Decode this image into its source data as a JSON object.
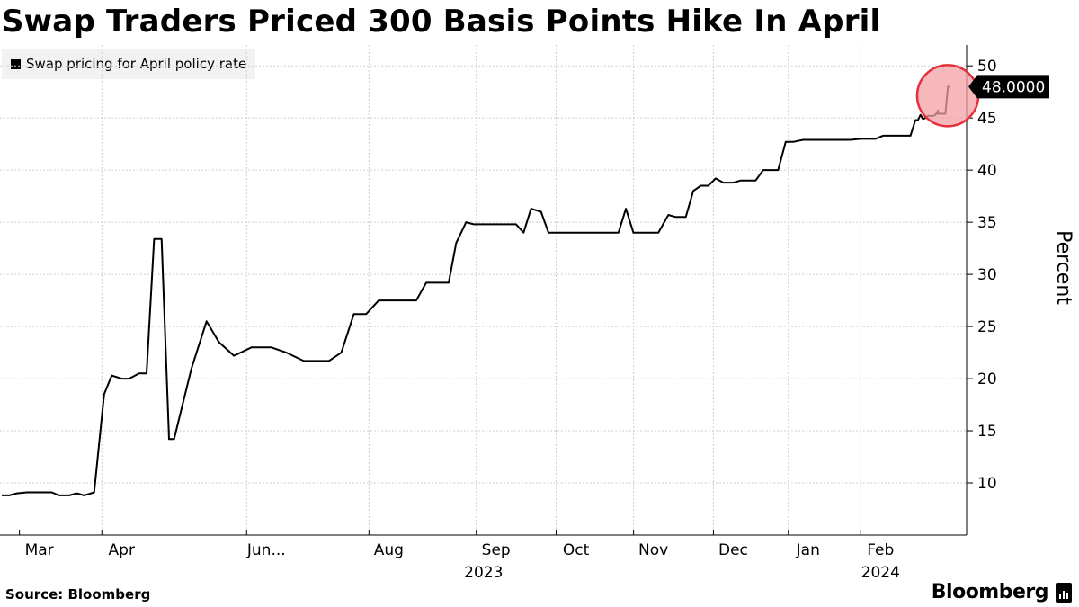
{
  "header": {
    "title": "Swap Traders Priced 300 Basis Points Hike In April"
  },
  "legend": {
    "label": "Swap pricing for April policy rate"
  },
  "footer": {
    "source": "Source: Bloomberg",
    "brand": "Bloomberg"
  },
  "chart_data": {
    "type": "line",
    "title": "Swap Traders Priced 300 Basis Points Hike In April",
    "ylabel": "Percent",
    "xlabel": "",
    "ylim": [
      5,
      52
    ],
    "xlim": [
      "2023-02-14",
      "2024-02-29"
    ],
    "y_ticks": [
      10,
      15,
      20,
      25,
      30,
      35,
      40,
      45,
      50
    ],
    "x_ticks": [
      {
        "label": "Mar",
        "date": "2023-03-01"
      },
      {
        "label": "Apr",
        "date": "2023-04-03"
      },
      {
        "label": "Jun...",
        "date": "2023-05-31"
      },
      {
        "label": "Aug",
        "date": "2023-07-19"
      },
      {
        "label": "Sep",
        "date": "2023-08-31"
      },
      {
        "label": "Oct",
        "date": "2023-10-02"
      },
      {
        "label": "Nov",
        "date": "2023-11-02"
      },
      {
        "label": "Dec",
        "date": "2023-12-04"
      },
      {
        "label": "Jan",
        "date": "2024-01-03"
      },
      {
        "label": "Feb",
        "date": "2024-02-01"
      }
    ],
    "year_labels": [
      {
        "label": "2023",
        "date": "2023-10-01"
      },
      {
        "label": "2024",
        "date": "2024-02-01"
      }
    ],
    "grid": true,
    "legend_position": "top-left",
    "last_value_label": "48.0000",
    "highlight_last_point": true,
    "series": [
      {
        "name": "Swap pricing for April policy rate",
        "color": "#000000",
        "points": [
          [
            "2023-02-14",
            8.8
          ],
          [
            "2023-02-17",
            8.8
          ],
          [
            "2023-02-20",
            9.0
          ],
          [
            "2023-02-24",
            9.1
          ],
          [
            "2023-03-03",
            9.1
          ],
          [
            "2023-03-06",
            9.1
          ],
          [
            "2023-03-09",
            8.8
          ],
          [
            "2023-03-13",
            8.8
          ],
          [
            "2023-03-16",
            9.0
          ],
          [
            "2023-03-19",
            8.8
          ],
          [
            "2023-03-23",
            9.1
          ],
          [
            "2023-03-27",
            18.5
          ],
          [
            "2023-03-30",
            20.3
          ],
          [
            "2023-04-03",
            20.0
          ],
          [
            "2023-04-06",
            20.0
          ],
          [
            "2023-04-10",
            20.5
          ],
          [
            "2023-04-13",
            20.5
          ],
          [
            "2023-04-16",
            33.4
          ],
          [
            "2023-04-19",
            33.4
          ],
          [
            "2023-04-22",
            14.2
          ],
          [
            "2023-04-24",
            14.2
          ],
          [
            "2023-05-01",
            21.0
          ],
          [
            "2023-05-07",
            25.5
          ],
          [
            "2023-05-12",
            23.5
          ],
          [
            "2023-05-18",
            22.2
          ],
          [
            "2023-05-25",
            23.0
          ],
          [
            "2023-06-02",
            23.0
          ],
          [
            "2023-06-08",
            22.5
          ],
          [
            "2023-06-15",
            21.7
          ],
          [
            "2023-06-25",
            21.7
          ],
          [
            "2023-06-30",
            22.5
          ],
          [
            "2023-07-05",
            26.2
          ],
          [
            "2023-07-10",
            26.2
          ],
          [
            "2023-07-15",
            27.5
          ],
          [
            "2023-07-30",
            27.5
          ],
          [
            "2023-08-03",
            29.2
          ],
          [
            "2023-08-12",
            29.2
          ],
          [
            "2023-08-15",
            33.0
          ],
          [
            "2023-08-19",
            35.0
          ],
          [
            "2023-08-22",
            34.8
          ],
          [
            "2023-09-08",
            34.8
          ],
          [
            "2023-09-11",
            34.0
          ],
          [
            "2023-09-14",
            36.3
          ],
          [
            "2023-09-18",
            36.0
          ],
          [
            "2023-09-21",
            34.0
          ],
          [
            "2023-09-28",
            34.0
          ],
          [
            "2023-10-05",
            34.0
          ],
          [
            "2023-10-12",
            34.0
          ],
          [
            "2023-10-19",
            34.0
          ],
          [
            "2023-10-22",
            36.3
          ],
          [
            "2023-10-25",
            34.0
          ],
          [
            "2023-10-29",
            34.0
          ],
          [
            "2023-11-04",
            34.0
          ],
          [
            "2023-11-08",
            35.7
          ],
          [
            "2023-11-11",
            35.5
          ],
          [
            "2023-11-15",
            35.5
          ],
          [
            "2023-11-18",
            38.0
          ],
          [
            "2023-11-21",
            38.5
          ],
          [
            "2023-11-24",
            38.5
          ],
          [
            "2023-11-27",
            39.2
          ],
          [
            "2023-11-30",
            38.8
          ],
          [
            "2023-12-04",
            38.8
          ],
          [
            "2023-12-07",
            39.0
          ],
          [
            "2023-12-13",
            39.0
          ],
          [
            "2023-12-16",
            40.0
          ],
          [
            "2023-12-22",
            40.0
          ],
          [
            "2023-12-25",
            42.7
          ],
          [
            "2023-12-28",
            42.7
          ],
          [
            "2024-01-01",
            42.9
          ],
          [
            "2024-01-10",
            42.9
          ],
          [
            "2024-01-20",
            42.9
          ],
          [
            "2024-01-24",
            43.0
          ],
          [
            "2024-01-30",
            43.0
          ],
          [
            "2024-02-02",
            43.3
          ],
          [
            "2024-02-06",
            43.3
          ],
          [
            "2024-02-10",
            43.3
          ],
          [
            "2024-02-13",
            43.3
          ],
          [
            "2024-02-15",
            44.8
          ],
          [
            "2024-02-16",
            44.8
          ],
          [
            "2024-02-17",
            45.3
          ],
          [
            "2024-02-18",
            44.9
          ],
          [
            "2024-02-19",
            45.0
          ],
          [
            "2024-02-20",
            45.2
          ],
          [
            "2024-02-21",
            45.2
          ],
          [
            "2024-02-22",
            45.2
          ],
          [
            "2024-02-23",
            45.3
          ],
          [
            "2024-02-24",
            45.7
          ],
          [
            "2024-02-24",
            45.4
          ],
          [
            "2024-02-25",
            45.4
          ],
          [
            "2024-02-26",
            45.4
          ],
          [
            "2024-02-27",
            45.4
          ],
          [
            "2024-02-27",
            45.4
          ],
          [
            "2024-02-28",
            48.0
          ],
          [
            "2024-02-29",
            48.0
          ]
        ]
      }
    ]
  }
}
